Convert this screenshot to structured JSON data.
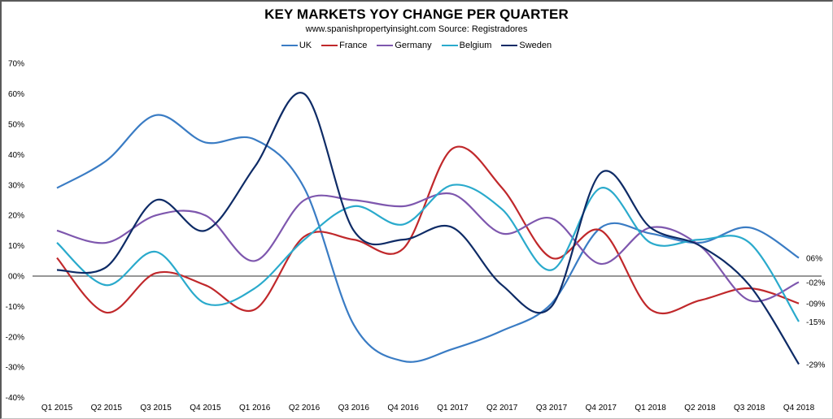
{
  "chart": {
    "title": "KEY MARKETS YOY CHANGE PER QUARTER",
    "subtitle": "www.spanishpropertyinsight.com Source: Registradores"
  },
  "legend": [
    {
      "name": "UK",
      "color": "#3A7CC4"
    },
    {
      "name": "France",
      "color": "#C0282B"
    },
    {
      "name": "Germany",
      "color": "#7E57AE"
    },
    {
      "name": "Belgium",
      "color": "#2AAACC"
    },
    {
      "name": "Sweden",
      "color": "#0E2B66"
    }
  ],
  "chart_data": {
    "type": "line",
    "title": "KEY MARKETS YOY CHANGE PER QUARTER",
    "subtitle": "www.spanishpropertyinsight.com Source: Registradores",
    "xlabel": "",
    "ylabel": "",
    "ylim": [
      -40,
      70
    ],
    "y_ticks": [
      "70%",
      "60%",
      "50%",
      "40%",
      "30%",
      "20%",
      "10%",
      "00%",
      "-10%",
      "-20%",
      "-30%",
      "-40%"
    ],
    "y_tick_values": [
      70,
      60,
      50,
      40,
      30,
      20,
      10,
      0,
      -10,
      -20,
      -30,
      -40
    ],
    "grid": false,
    "legend_position": "top",
    "smooth": true,
    "categories": [
      "Q1 2015",
      "Q2 2015",
      "Q3 2015",
      "Q4 2015",
      "Q1 2016",
      "Q2 2016",
      "Q3 2016",
      "Q4 2016",
      "Q1 2017",
      "Q2 2017",
      "Q3 2017",
      "Q4 2017",
      "Q1 2018",
      "Q2 2018",
      "Q3 2018",
      "Q4 2018"
    ],
    "series": [
      {
        "name": "UK",
        "color": "#3A7CC4",
        "end_label": "06%",
        "values": [
          29,
          38,
          53,
          44,
          45,
          29,
          -16,
          -28,
          -24,
          -18,
          -9,
          16,
          14,
          11,
          16,
          6
        ]
      },
      {
        "name": "France",
        "color": "#C0282B",
        "end_label": "-09%",
        "values": [
          6,
          -12,
          1,
          -3,
          -11,
          13,
          12,
          9,
          42,
          29,
          6,
          15,
          -11,
          -8,
          -4,
          -9
        ]
      },
      {
        "name": "Germany",
        "color": "#7E57AE",
        "end_label": "-02%",
        "values": [
          15,
          11,
          20,
          20,
          5,
          25,
          25,
          23,
          27,
          14,
          19,
          4,
          16,
          10,
          -8,
          -2
        ]
      },
      {
        "name": "Belgium",
        "color": "#2AAACC",
        "end_label": "-15%",
        "values": [
          11,
          -3,
          8,
          -9,
          -4,
          12,
          23,
          17,
          30,
          22,
          2,
          29,
          11,
          12,
          11,
          -15
        ]
      },
      {
        "name": "Sweden",
        "color": "#0E2B66",
        "end_label": "-29%",
        "values": [
          2,
          3,
          25,
          15,
          36,
          60,
          15,
          12,
          16,
          -3,
          -10,
          34,
          16,
          10,
          -3,
          -29
        ]
      }
    ]
  }
}
